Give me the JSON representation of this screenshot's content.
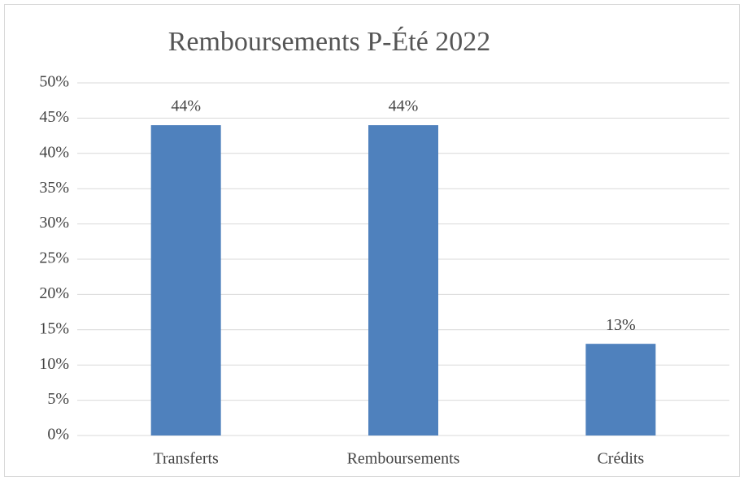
{
  "chart_data": {
    "type": "bar",
    "title": "Remboursements P-Été 2022",
    "categories": [
      "Transferts",
      "Remboursements",
      "Crédits"
    ],
    "values": [
      44,
      44,
      13
    ],
    "value_labels": [
      "44%",
      "44%",
      "13%"
    ],
    "color": "#4f81bd",
    "ylim": [
      0,
      50
    ],
    "yticks": [
      {
        "value": 0,
        "label": "0%"
      },
      {
        "value": 5,
        "label": "5%"
      },
      {
        "value": 10,
        "label": "10%"
      },
      {
        "value": 15,
        "label": "15%"
      },
      {
        "value": 20,
        "label": "20%"
      },
      {
        "value": 25,
        "label": "25%"
      },
      {
        "value": 30,
        "label": "30%"
      },
      {
        "value": 35,
        "label": "35%"
      },
      {
        "value": 40,
        "label": "40%"
      },
      {
        "value": 45,
        "label": "45%"
      },
      {
        "value": 50,
        "label": "50%"
      }
    ],
    "grid": true
  }
}
